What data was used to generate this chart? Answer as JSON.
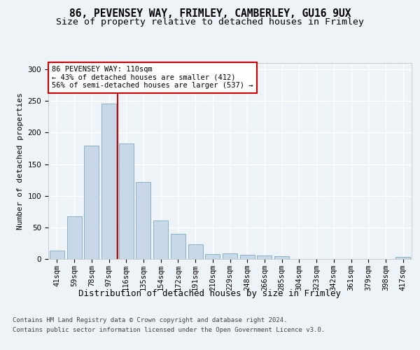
{
  "title1": "86, PEVENSEY WAY, FRIMLEY, CAMBERLEY, GU16 9UX",
  "title2": "Size of property relative to detached houses in Frimley",
  "xlabel": "Distribution of detached houses by size in Frimley",
  "ylabel": "Number of detached properties",
  "bar_color": "#c8d8e8",
  "bar_edge_color": "#7aaabf",
  "categories": [
    "41sqm",
    "59sqm",
    "78sqm",
    "97sqm",
    "116sqm",
    "135sqm",
    "154sqm",
    "172sqm",
    "191sqm",
    "210sqm",
    "229sqm",
    "248sqm",
    "266sqm",
    "285sqm",
    "304sqm",
    "323sqm",
    "342sqm",
    "361sqm",
    "379sqm",
    "398sqm",
    "417sqm"
  ],
  "values": [
    13,
    68,
    179,
    246,
    183,
    122,
    61,
    40,
    23,
    8,
    9,
    7,
    6,
    4,
    0,
    0,
    0,
    0,
    0,
    0,
    3
  ],
  "vline_x": 3.5,
  "vline_color": "#cc0000",
  "annotation_text": "86 PEVENSEY WAY: 110sqm\n← 43% of detached houses are smaller (412)\n56% of semi-detached houses are larger (537) →",
  "annotation_box_color": "#ffffff",
  "annotation_box_edge_color": "#cc0000",
  "ylim": [
    0,
    310
  ],
  "yticks": [
    0,
    50,
    100,
    150,
    200,
    250,
    300
  ],
  "footer1": "Contains HM Land Registry data © Crown copyright and database right 2024.",
  "footer2": "Contains public sector information licensed under the Open Government Licence v3.0.",
  "bg_color": "#eef3f8",
  "plot_bg_color": "#eef3f8",
  "grid_color": "#ffffff",
  "title1_fontsize": 10.5,
  "title2_fontsize": 9.5,
  "xlabel_fontsize": 9,
  "ylabel_fontsize": 8,
  "tick_fontsize": 7.5,
  "annotation_fontsize": 7.5,
  "footer_fontsize": 6.5
}
